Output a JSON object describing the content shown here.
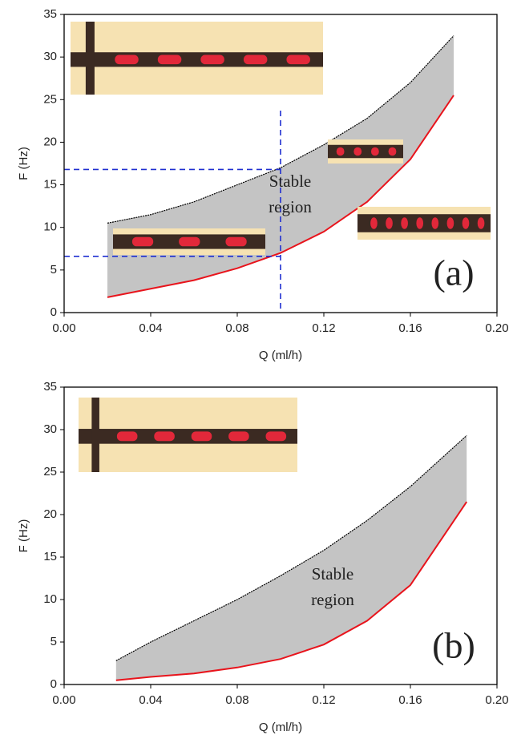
{
  "chart_data": [
    {
      "type": "area",
      "xlabel": "Q (ml/h)",
      "ylabel": "F (Hz)",
      "x": [
        0.02,
        0.04,
        0.06,
        0.08,
        0.1,
        0.12,
        0.14,
        0.16,
        0.18
      ],
      "series": [
        {
          "color": "#000000",
          "dashed": true,
          "values": [
            10.5,
            11.5,
            13,
            15,
            17,
            19.7,
            22.8,
            27,
            32.5
          ]
        },
        {
          "color": "#e8141c",
          "dashed": false,
          "values": [
            1.8,
            2.8,
            3.8,
            5.2,
            7,
            9.5,
            13,
            18,
            25.5
          ]
        }
      ],
      "fill_color": "#c4c4c4",
      "xlim": [
        0,
        0.2
      ],
      "ylim": [
        0,
        35
      ],
      "xticks": [
        {
          "value": 0,
          "label": "0.00"
        },
        {
          "value": 0.04,
          "label": "0.04"
        },
        {
          "value": 0.08,
          "label": "0.08"
        },
        {
          "value": 0.12,
          "label": "0.12"
        },
        {
          "value": 0.16,
          "label": "0.16"
        },
        {
          "value": 0.2,
          "label": "0.20"
        }
      ],
      "yticks": [
        0,
        5,
        10,
        15,
        20,
        25,
        30,
        35
      ],
      "ref_color": "#1f2fd0",
      "ref_x": 0.1,
      "ref_y": [
        16.8,
        6.6
      ],
      "annotation_lines": [
        "Stable",
        "region"
      ],
      "panel_label": "(a)"
    },
    {
      "type": "area",
      "xlabel": "Q (ml/h)",
      "ylabel": "F (Hz)",
      "x": [
        0.024,
        0.04,
        0.06,
        0.08,
        0.1,
        0.12,
        0.14,
        0.16,
        0.186
      ],
      "series": [
        {
          "color": "#000000",
          "dashed": true,
          "values": [
            2.8,
            5,
            7.5,
            10,
            12.8,
            15.8,
            19.3,
            23.3,
            29.3
          ]
        },
        {
          "color": "#e8141c",
          "dashed": false,
          "values": [
            0.5,
            0.9,
            1.3,
            2,
            3,
            4.7,
            7.5,
            11.7,
            21.5
          ]
        }
      ],
      "fill_color": "#c4c4c4",
      "xlim": [
        0,
        0.2
      ],
      "ylim": [
        0,
        35
      ],
      "xticks": [
        {
          "value": 0,
          "label": "0.00"
        },
        {
          "value": 0.04,
          "label": "0.04"
        },
        {
          "value": 0.08,
          "label": "0.08"
        },
        {
          "value": 0.12,
          "label": "0.12"
        },
        {
          "value": 0.16,
          "label": "0.16"
        },
        {
          "value": 0.2,
          "label": "0.20"
        }
      ],
      "yticks": [
        0,
        5,
        10,
        15,
        20,
        25,
        30,
        35
      ],
      "annotation_lines": [
        "Stable",
        "region"
      ],
      "panel_label": "(b)"
    }
  ]
}
